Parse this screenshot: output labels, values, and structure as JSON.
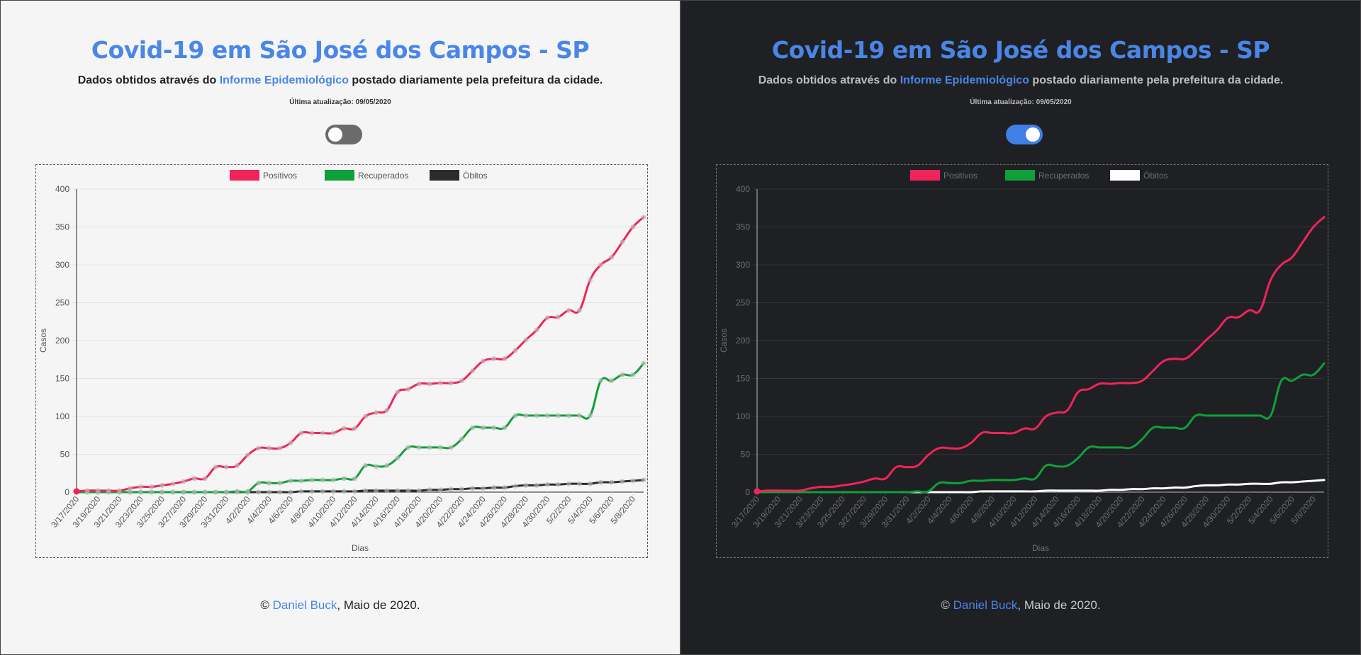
{
  "header": {
    "title": "Covid-19 em São José dos Campos - SP",
    "subtitle_before": "Dados obtidos através do ",
    "subtitle_link": "Informe Epidemiológico",
    "subtitle_after": " postado diariamente pela prefeitura da cidade.",
    "updated": "Última atualização: 09/05/2020"
  },
  "theme_toggle": {
    "light_state": "off",
    "dark_state": "on"
  },
  "footer": {
    "prefix": "© ",
    "author": "Daniel Buck",
    "suffix": ", Maio de 2020."
  },
  "colors": {
    "accent": "#4a86e8",
    "positivos": "#f0245a",
    "recuperados": "#10a03a",
    "obitos_light": "#2b2b2b",
    "obitos_dark": "#ffffff"
  },
  "chart_data": {
    "type": "line",
    "xlabel": "Dias",
    "ylabel": "Casos",
    "ylim": [
      0,
      400
    ],
    "yticks": [
      0,
      50,
      100,
      150,
      200,
      250,
      300,
      350,
      400
    ],
    "legend_position": "top-center",
    "grid": true,
    "x_tick_labels": [
      "3/17/2020",
      "3/19/2020",
      "3/21/2020",
      "3/23/2020",
      "3/25/2020",
      "3/27/2020",
      "3/29/2020",
      "3/31/2020",
      "4/2/2020",
      "4/4/2020",
      "4/6/2020",
      "4/8/2020",
      "4/10/2020",
      "4/12/2020",
      "4/14/2020",
      "4/16/2020",
      "4/18/2020",
      "4/20/2020",
      "4/22/2020",
      "4/24/2020",
      "4/26/2020",
      "4/28/2020",
      "4/30/2020",
      "5/2/2020",
      "5/4/2020",
      "5/6/2020",
      "5/8/2020"
    ],
    "series": [
      {
        "name": "Positivos",
        "values": [
          1,
          2,
          2,
          2,
          2,
          5,
          7,
          7,
          9,
          11,
          14,
          18,
          18,
          33,
          33,
          35,
          49,
          58,
          58,
          58,
          65,
          78,
          78,
          78,
          78,
          84,
          84,
          100,
          105,
          108,
          132,
          136,
          143,
          143,
          144,
          144,
          147,
          160,
          173,
          176,
          176,
          187,
          201,
          214,
          230,
          231,
          240,
          240,
          280,
          300,
          310,
          330,
          350,
          363
        ]
      },
      {
        "name": "Recuperados",
        "values": [
          0,
          0,
          0,
          0,
          0,
          0,
          0,
          0,
          0,
          0,
          0,
          0,
          0,
          0,
          0,
          1,
          1,
          12,
          12,
          12,
          15,
          15,
          16,
          16,
          16,
          18,
          18,
          35,
          34,
          35,
          45,
          59,
          59,
          59,
          59,
          59,
          70,
          85,
          85,
          85,
          85,
          101,
          101,
          101,
          101,
          101,
          101,
          101,
          101,
          147,
          147,
          155,
          155,
          170
        ]
      },
      {
        "name": "Óbitos",
        "values": [
          0,
          0,
          0,
          0,
          0,
          0,
          0,
          0,
          0,
          0,
          0,
          0,
          0,
          0,
          0,
          0,
          0,
          0,
          0,
          0,
          0,
          1,
          1,
          1,
          1,
          1,
          1,
          2,
          2,
          2,
          2,
          2,
          2,
          3,
          3,
          4,
          4,
          5,
          5,
          6,
          6,
          8,
          9,
          9,
          10,
          10,
          11,
          11,
          11,
          13,
          13,
          14,
          15,
          16
        ]
      }
    ]
  }
}
